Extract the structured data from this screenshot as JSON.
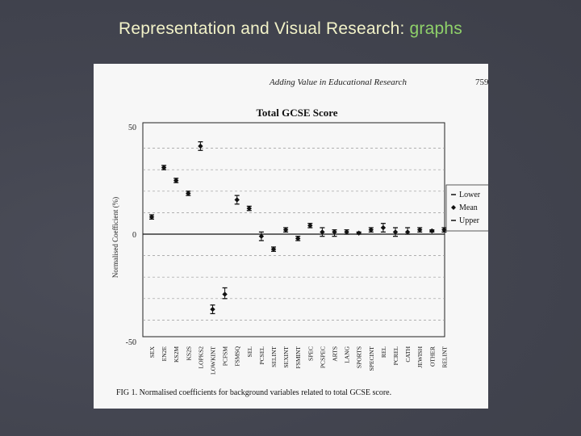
{
  "slide": {
    "title_main": "Representation and Visual Research: ",
    "title_highlight": "graphs"
  },
  "page_header": {
    "journal_title": "Adding Value in Educational Research",
    "page_number": "759"
  },
  "figure": {
    "caption": "FIG 1. Normalised coefficients for background variables related to total GCSE score."
  },
  "colors": {
    "slide_background": "#42444f",
    "title_text": "#f2f2c8",
    "title_highlight": "#8fd16a",
    "page_background": "#f7f7f7",
    "marker": "#111111"
  },
  "chart_data": {
    "type": "scatter",
    "title": "Total GCSE Score",
    "xlabel": "",
    "ylabel": "Normalised Coefficient (%)",
    "ylim": [
      -50,
      50
    ],
    "yticks": [
      50,
      0,
      -50
    ],
    "grid": "horizontal dashed",
    "legend_position": "right",
    "legend": [
      "Lower",
      "Mean",
      "Upper"
    ],
    "categories": [
      "SEX",
      "EN2E",
      "KS2M",
      "KS2S",
      "LOPKS2",
      "LOWKINT",
      "PCFSM",
      "FSMSQ",
      "SEL",
      "PCSEL",
      "SELINT",
      "SEXINT",
      "FSMINT",
      "SPEC",
      "PCSPEC",
      "ARTS",
      "LANG",
      "SPORTS",
      "SPECINT",
      "REL",
      "PCREL",
      "CATH",
      "JEWISH",
      "OTHER",
      "RELINT"
    ],
    "series": [
      {
        "name": "Lower",
        "values": [
          7,
          30,
          24,
          18,
          39,
          -37,
          -30,
          14,
          11,
          -3,
          -8,
          1,
          -3,
          3,
          -1,
          -1,
          0,
          0,
          1,
          1,
          -1,
          0,
          1,
          1,
          1
        ]
      },
      {
        "name": "Mean",
        "values": [
          8,
          31,
          25,
          19,
          41,
          -35,
          -28,
          16,
          12,
          -1,
          -7,
          2,
          -2,
          4,
          1,
          1,
          1,
          0.5,
          2,
          3,
          1,
          1,
          2,
          1.5,
          2
        ]
      },
      {
        "name": "Upper",
        "values": [
          9,
          32,
          26,
          20,
          43,
          -33,
          -25,
          18,
          13,
          1,
          -6,
          3,
          -1,
          5,
          3,
          2,
          2,
          1,
          3,
          5,
          3,
          3,
          3,
          2,
          3
        ]
      }
    ]
  }
}
